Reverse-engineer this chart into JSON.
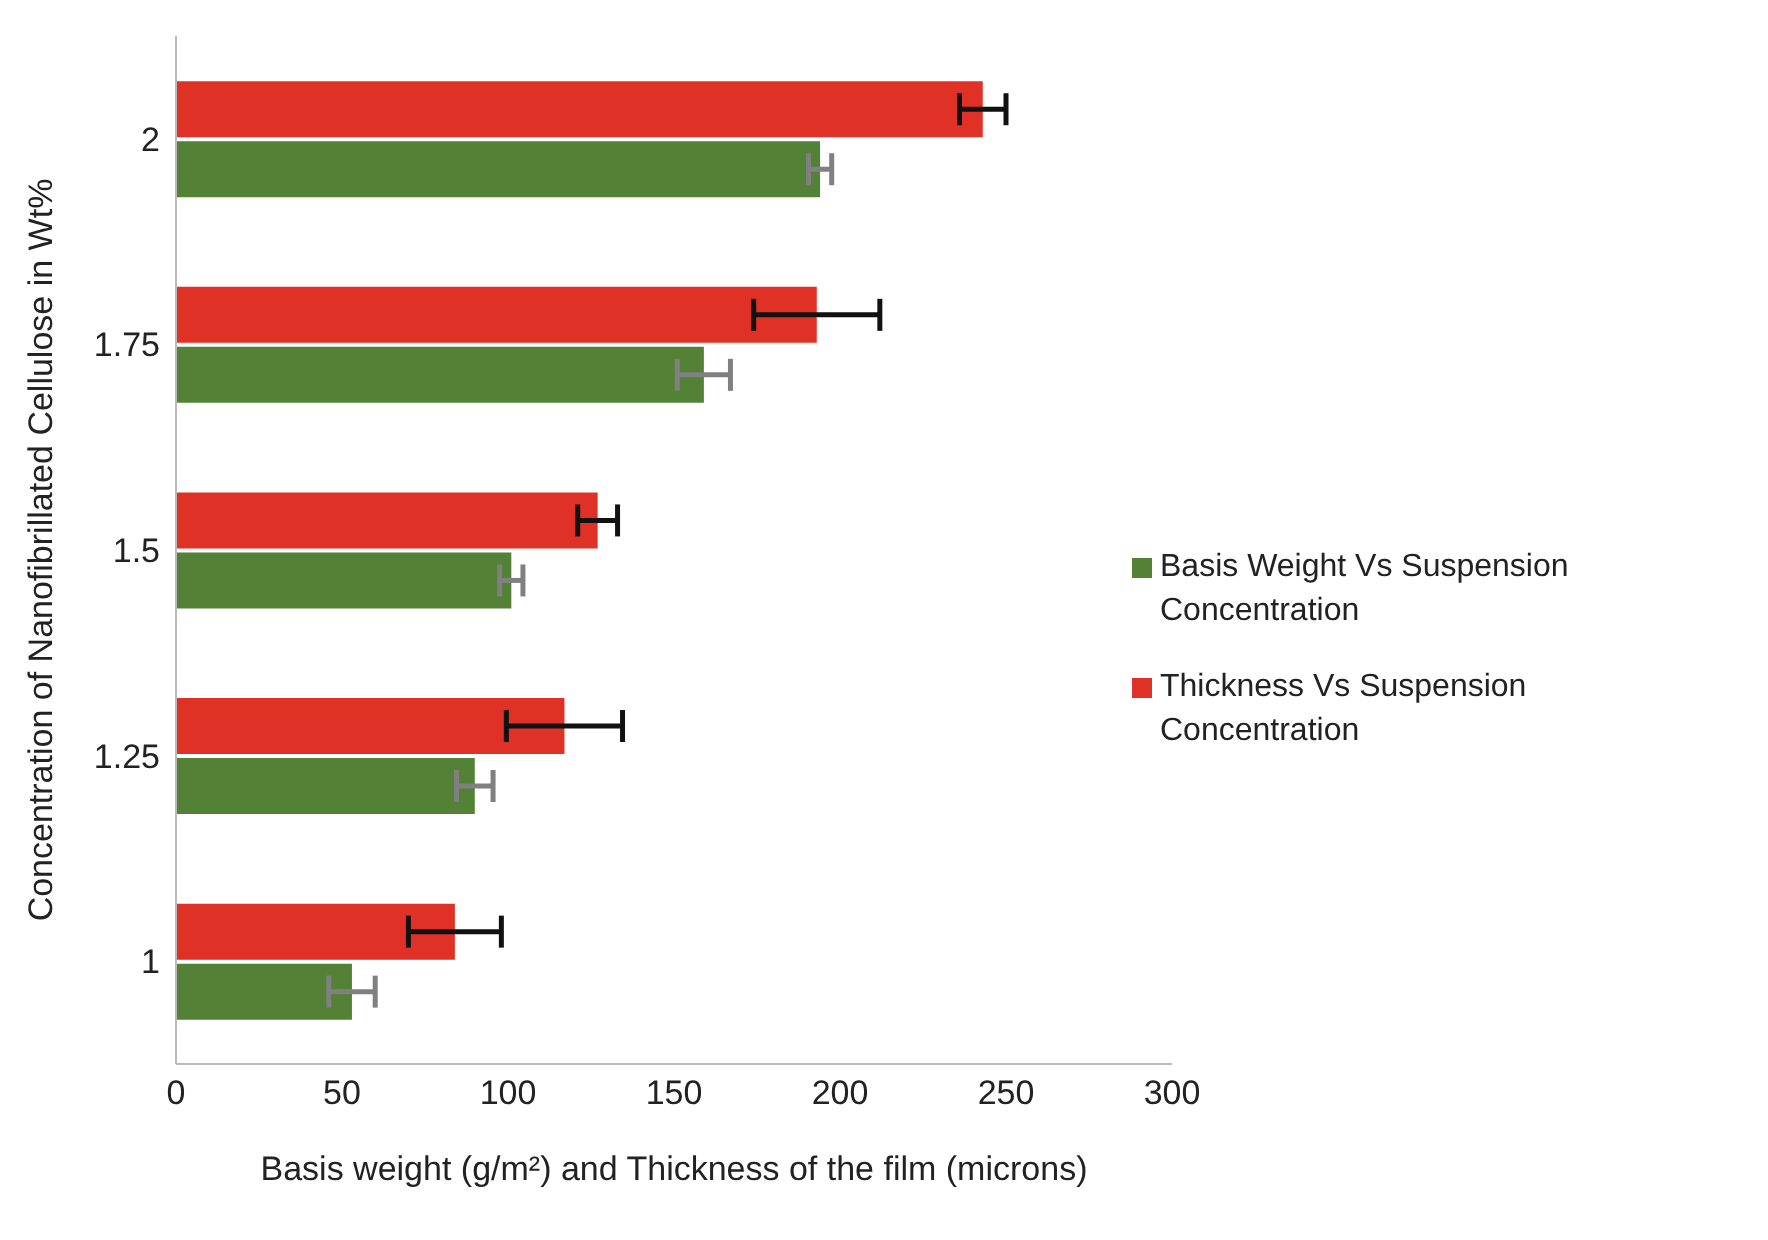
{
  "chart_data": {
    "type": "bar",
    "orientation": "horizontal",
    "xlabel": "Basis weight (g/m²) and Thickness of the film (microns)",
    "ylabel": "Concentration of Nanofibrillated Cellulose in Wt%",
    "categories": [
      "2",
      "1.75",
      "1.5",
      "1.25",
      "1"
    ],
    "series": [
      {
        "name": "Thickness Vs Suspension Concentration",
        "color": "#e03127",
        "values": [
          243,
          193,
          127,
          117,
          84
        ],
        "errors": [
          7,
          19,
          6,
          17.5,
          14
        ]
      },
      {
        "name": "Basis Weight Vs Suspension Concentration",
        "color": "#538135",
        "values": [
          194,
          159,
          101,
          90,
          53
        ],
        "errors": [
          3.5,
          8,
          3.5,
          5.5,
          7
        ]
      }
    ],
    "xlim": [
      0,
      300
    ],
    "xticks": [
      0,
      50,
      100,
      150,
      200,
      250,
      300
    ],
    "grid": false,
    "legend": "right"
  }
}
